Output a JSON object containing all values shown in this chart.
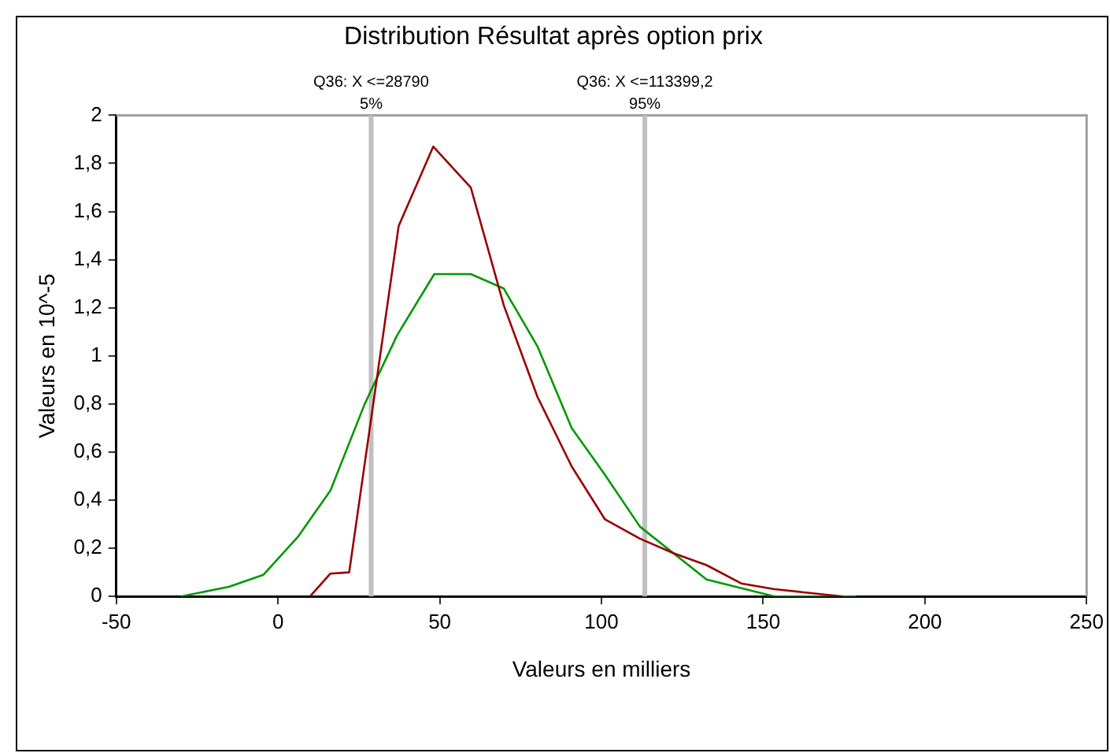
{
  "chart_data": {
    "type": "line",
    "title": "Distribution Résultat après option prix",
    "xlabel": "Valeurs en milliers",
    "ylabel": "Valeurs en 10^-5",
    "series": [
      {
        "color": "#990000",
        "x": [
          9.9,
          16.2,
          22,
          37.3,
          48,
          59.6,
          69.8,
          80.2,
          90.8,
          101.1,
          111.9,
          122.2,
          132.5,
          143.2,
          153.5,
          174.6
        ],
        "values": [
          0,
          0.095,
          0.1,
          1.54,
          1.87,
          1.7,
          1.21,
          0.83,
          0.54,
          0.32,
          0.24,
          0.18,
          0.13,
          0.054,
          0.03,
          0
        ]
      },
      {
        "color": "#009900",
        "x": [
          -30,
          -15.2,
          -4.5,
          6.3,
          16.2,
          26.8,
          36.8,
          48.3,
          59.6,
          69.8,
          80.2,
          90.8,
          101.1,
          111.9,
          132.5,
          153.5,
          178.7
        ],
        "values": [
          0,
          0.04,
          0.09,
          0.25,
          0.44,
          0.8,
          1.085,
          1.34,
          1.34,
          1.28,
          1.04,
          0.7,
          0.505,
          0.29,
          0.07,
          0,
          0
        ]
      }
    ],
    "xlim": [
      -50,
      250
    ],
    "xticks": [
      -50,
      0,
      50,
      100,
      150,
      200,
      250
    ],
    "ylim": [
      0,
      2
    ],
    "yticks": [
      0,
      {
        "value": 0.2,
        "label": "0,2"
      },
      {
        "value": 0.4,
        "label": "0,4"
      },
      {
        "value": 0.6,
        "label": "0,6"
      },
      {
        "value": 0.8,
        "label": "0,8"
      },
      1,
      {
        "value": 1.2,
        "label": "1,2"
      },
      {
        "value": 1.4,
        "label": "1,4"
      },
      {
        "value": 1.6,
        "label": "1,6"
      },
      {
        "value": 1.8,
        "label": "1,8"
      },
      2
    ],
    "ref_lines": [
      {
        "axis": "x",
        "value": 28.79,
        "label": "Q36: X <=28790\n5%",
        "color": "#c0c0c0"
      },
      {
        "axis": "x",
        "value": 113.3992,
        "label": "Q36: X <=113399,2\n95%",
        "color": "#c0c0c0"
      }
    ],
    "grid": false,
    "legend": false,
    "marker": "none",
    "line_style": "solid"
  }
}
